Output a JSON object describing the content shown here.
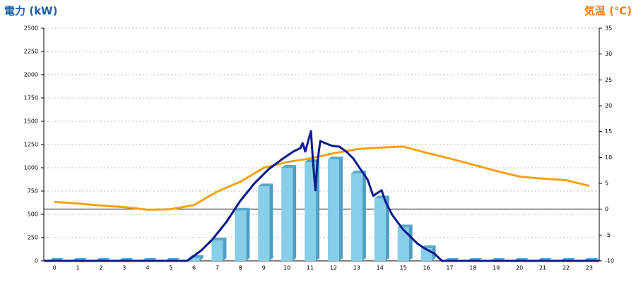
{
  "chart_data": {
    "type": "combo",
    "title_left": "電力 (kW)",
    "title_right": "気温 (℃)",
    "title_left_color": "#1a5fa8",
    "title_right_color": "#f07f1a",
    "categories": [
      "0",
      "1",
      "2",
      "3",
      "4",
      "5",
      "6",
      "7",
      "8",
      "9",
      "10",
      "11",
      "12",
      "13",
      "14",
      "15",
      "16",
      "17",
      "18",
      "19",
      "20",
      "21",
      "22",
      "23"
    ],
    "xlim": [
      -0.46,
      23.43
    ],
    "ylim": [
      0,
      2500
    ],
    "yticks": [
      0,
      250,
      500,
      750,
      1000,
      1250,
      1500,
      1750,
      2000,
      2250,
      2500
    ],
    "y2lim": [
      -10,
      35
    ],
    "y2ticks": [
      -10,
      -5,
      0,
      5,
      10,
      15,
      20,
      25,
      30,
      35
    ],
    "grid": true,
    "series": [
      {
        "type": "bar",
        "color": "#87ceeb",
        "values": [
          0,
          0,
          0,
          0,
          0,
          0,
          30,
          220,
          540,
          800,
          1000,
          1060,
          1090,
          940,
          670,
          360,
          135,
          0,
          0,
          0,
          0,
          0,
          0,
          0
        ]
      },
      {
        "type": "line",
        "color": "#0a1a8c",
        "x": [
          -0.46,
          5.71,
          6.32,
          6.78,
          7.39,
          7.99,
          8.6,
          9.21,
          9.82,
          10.27,
          10.58,
          10.67,
          10.79,
          10.91,
          11.03,
          11.12,
          11.22,
          11.31,
          11.43,
          11.64,
          11.95,
          12.25,
          12.55,
          12.86,
          13.16,
          13.47,
          13.71,
          13.83,
          14.07,
          14.22,
          14.53,
          14.98,
          15.29,
          15.59,
          15.9,
          16.35,
          16.66,
          23.43
        ],
        "values": [
          0,
          0,
          114,
          227,
          417,
          644,
          833,
          985,
          1098,
          1174,
          1212,
          1265,
          1174,
          1288,
          1394,
          1061,
          758,
          1061,
          1288,
          1265,
          1235,
          1227,
          1174,
          1098,
          985,
          871,
          697,
          720,
          758,
          644,
          492,
          341,
          265,
          189,
          136,
          76,
          0,
          0
        ]
      },
      {
        "type": "line",
        "color": "#f5a30f",
        "axis": "y2",
        "values": [
          1.4,
          1.1,
          0.7,
          0.4,
          -0.1,
          0,
          0.8,
          3.4,
          5.3,
          8.0,
          9.1,
          9.8,
          10.8,
          11.6,
          11.9,
          12.1,
          10.9,
          9.8,
          8.6,
          7.4,
          6.3,
          5.9,
          5.6,
          4.5
        ]
      }
    ]
  }
}
